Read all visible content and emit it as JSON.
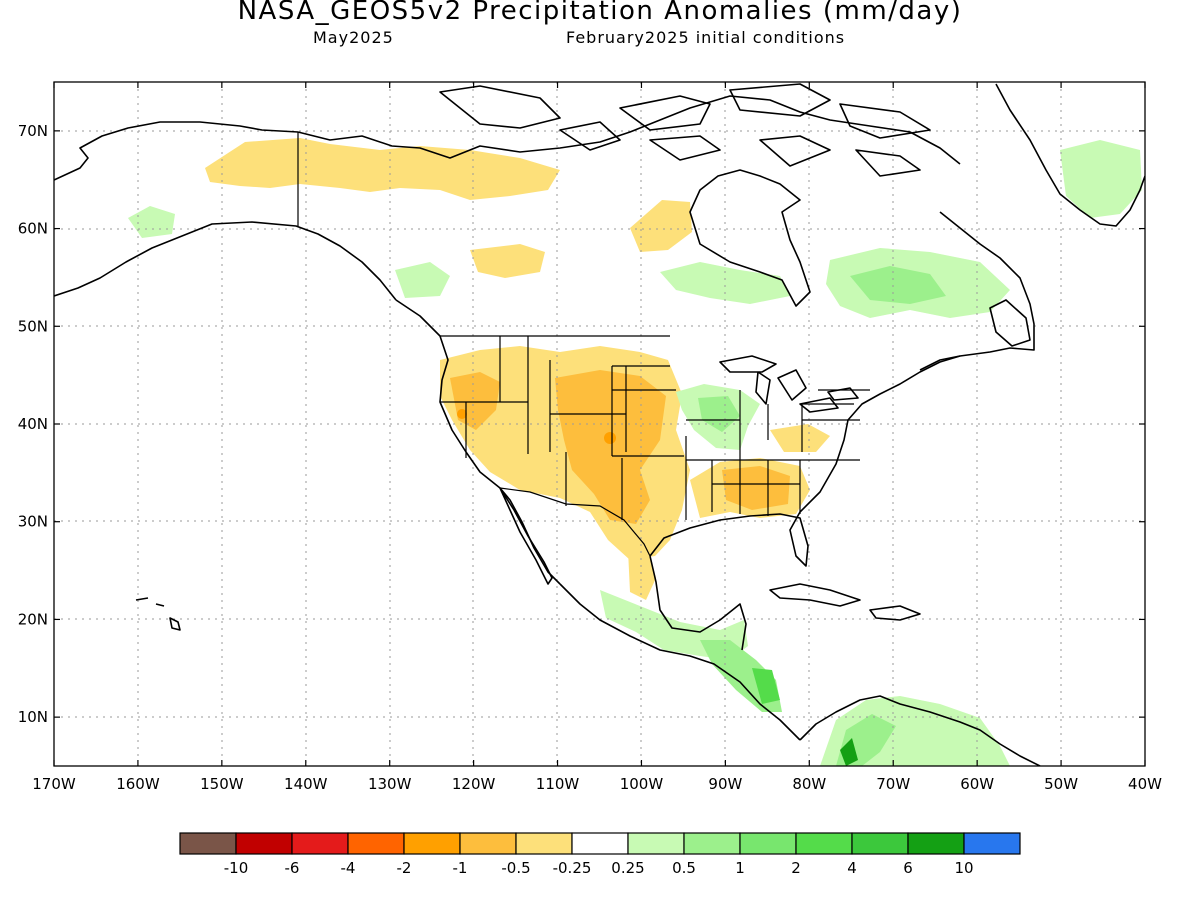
{
  "title": "NASA_GEOS5v2 Precipitation Anomalies (mm/day)",
  "subtitle_left": "May2025",
  "subtitle_right": "February2025 initial conditions",
  "map": {
    "lon_range": [
      -170,
      -40
    ],
    "lat_range": [
      5,
      75
    ],
    "lat_ticks": [
      {
        "value": 70,
        "label": "70N"
      },
      {
        "value": 60,
        "label": "60N"
      },
      {
        "value": 50,
        "label": "50N"
      },
      {
        "value": 40,
        "label": "40N"
      },
      {
        "value": 30,
        "label": "30N"
      },
      {
        "value": 20,
        "label": "20N"
      },
      {
        "value": 10,
        "label": "10N"
      }
    ],
    "lon_ticks": [
      {
        "value": -170,
        "label": "170W"
      },
      {
        "value": -160,
        "label": "160W"
      },
      {
        "value": -150,
        "label": "150W"
      },
      {
        "value": -140,
        "label": "140W"
      },
      {
        "value": -130,
        "label": "130W"
      },
      {
        "value": -120,
        "label": "120W"
      },
      {
        "value": -110,
        "label": "110W"
      },
      {
        "value": -100,
        "label": "100W"
      },
      {
        "value": -90,
        "label": "90W"
      },
      {
        "value": -80,
        "label": "80W"
      },
      {
        "value": -70,
        "label": "70W"
      },
      {
        "value": -60,
        "label": "60W"
      },
      {
        "value": -50,
        "label": "50W"
      },
      {
        "value": -40,
        "label": "40W"
      }
    ],
    "grid": "dotted"
  },
  "colorbar": {
    "colors": [
      "#7a5548",
      "#c10000",
      "#e41b1b",
      "#ff6400",
      "#ffa000",
      "#fdbe3d",
      "#fde07a",
      "#ffffff",
      "#c8fab4",
      "#9cf08c",
      "#78e66e",
      "#54dc4a",
      "#3cc83c",
      "#14a014",
      "#2877ee"
    ],
    "labels": [
      "-10",
      "-6",
      "-4",
      "-2",
      "-1",
      "-0.5",
      "-0.25",
      "0.25",
      "0.5",
      "1",
      "2",
      "4",
      "6",
      "10"
    ]
  },
  "legend": {
    "dry_light": "#fde07a",
    "dry_mid": "#fdbe3d",
    "dry_strong": "#ffa000",
    "dry_red": "#ff6400",
    "wet_light": "#c8fab4",
    "wet_mid": "#9cf08c",
    "wet_strong": "#54dc4a",
    "wet_deep": "#14a014"
  }
}
